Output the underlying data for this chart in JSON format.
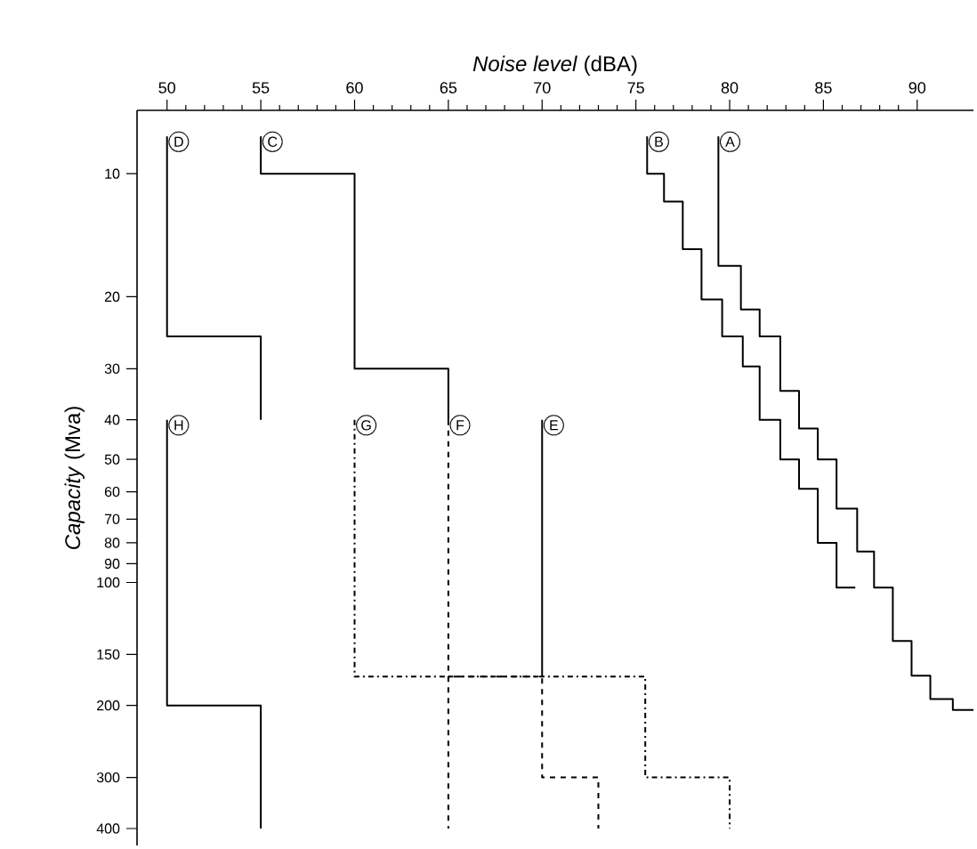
{
  "chart_data": {
    "type": "line",
    "xlabel": "*Noise level*  (dBA)",
    "ylabel": "*Capacity*  (Mva)",
    "log": "y",
    "xlim": [
      48.4,
      93
    ],
    "ylim": [
      440,
      7
    ],
    "xticks": [
      50,
      55,
      60,
      65,
      70,
      75,
      80,
      85,
      90
    ],
    "yticks": [
      10,
      20,
      30,
      40,
      50,
      60,
      70,
      80,
      90,
      100,
      150,
      200,
      300,
      400
    ],
    "line_style": "solid",
    "series": [
      {
        "name": "A",
        "color": "#000000",
        "x": [
          79.4,
          79.4,
          80.6,
          80.6,
          81.6,
          81.6,
          82.7,
          82.7,
          83.7,
          83.7,
          84.7,
          84.7,
          85.7,
          85.7,
          86.8,
          86.8,
          87.7,
          87.7,
          88.7,
          88.7,
          89.7,
          89.7,
          90.7,
          90.7,
          91.9,
          91.9,
          93
        ],
        "values": [
          8.1,
          16.8,
          16.8,
          21.5,
          21.5,
          25,
          25,
          34,
          34,
          42,
          42,
          50,
          50,
          66,
          66,
          84,
          84,
          103,
          103,
          139,
          139,
          169,
          169,
          193,
          193,
          205,
          205
        ]
      },
      {
        "name": "B",
        "color": "#000000",
        "x": [
          75.6,
          75.6,
          76.5,
          76.5,
          77.5,
          77.5,
          78.5,
          78.5,
          79.6,
          79.6,
          80.7,
          80.7,
          81.6,
          81.6,
          82.7,
          82.7,
          83.7,
          83.7,
          84.7,
          84.7,
          85.7,
          85.7,
          86.7
        ],
        "values": [
          8.1,
          10,
          10,
          11.7,
          11.7,
          15.3,
          15.3,
          20.3,
          20.3,
          25,
          25,
          29.6,
          29.6,
          40,
          40,
          50,
          50,
          59,
          59,
          80,
          80,
          103,
          103
        ]
      },
      {
        "name": "C",
        "color": "#000000",
        "x": [
          55,
          55,
          60,
          60,
          65,
          65
        ],
        "values": [
          8.1,
          10,
          10,
          30,
          30,
          40
        ]
      },
      {
        "name": "D",
        "color": "#000000",
        "x": [
          50,
          50,
          55,
          55
        ],
        "values": [
          8.1,
          25,
          25,
          40
        ]
      },
      {
        "name": "E",
        "color": "#000000",
        "x": [
          70,
          70
        ],
        "values": [
          40,
          170
        ]
      },
      {
        "name": "F",
        "color": "#000000",
        "line_style": "dashed",
        "x": [
          65,
          65,
          70,
          70,
          73,
          73
        ],
        "values": [
          40,
          170,
          170,
          300,
          300,
          400
        ]
      },
      {
        "color": "#000000",
        "line_style": "dashed",
        "x": [
          65,
          65
        ],
        "values": [
          170,
          400
        ]
      },
      {
        "name": "G",
        "color": "#000000",
        "line_style": "dashdot",
        "x": [
          60,
          60,
          75.5,
          75.5,
          80,
          80
        ],
        "values": [
          40,
          170,
          170,
          300,
          300,
          400
        ]
      },
      {
        "name": "H",
        "color": "#000000",
        "x": [
          50,
          50,
          55,
          55
        ],
        "values": [
          40,
          200,
          200,
          400
        ]
      }
    ]
  }
}
